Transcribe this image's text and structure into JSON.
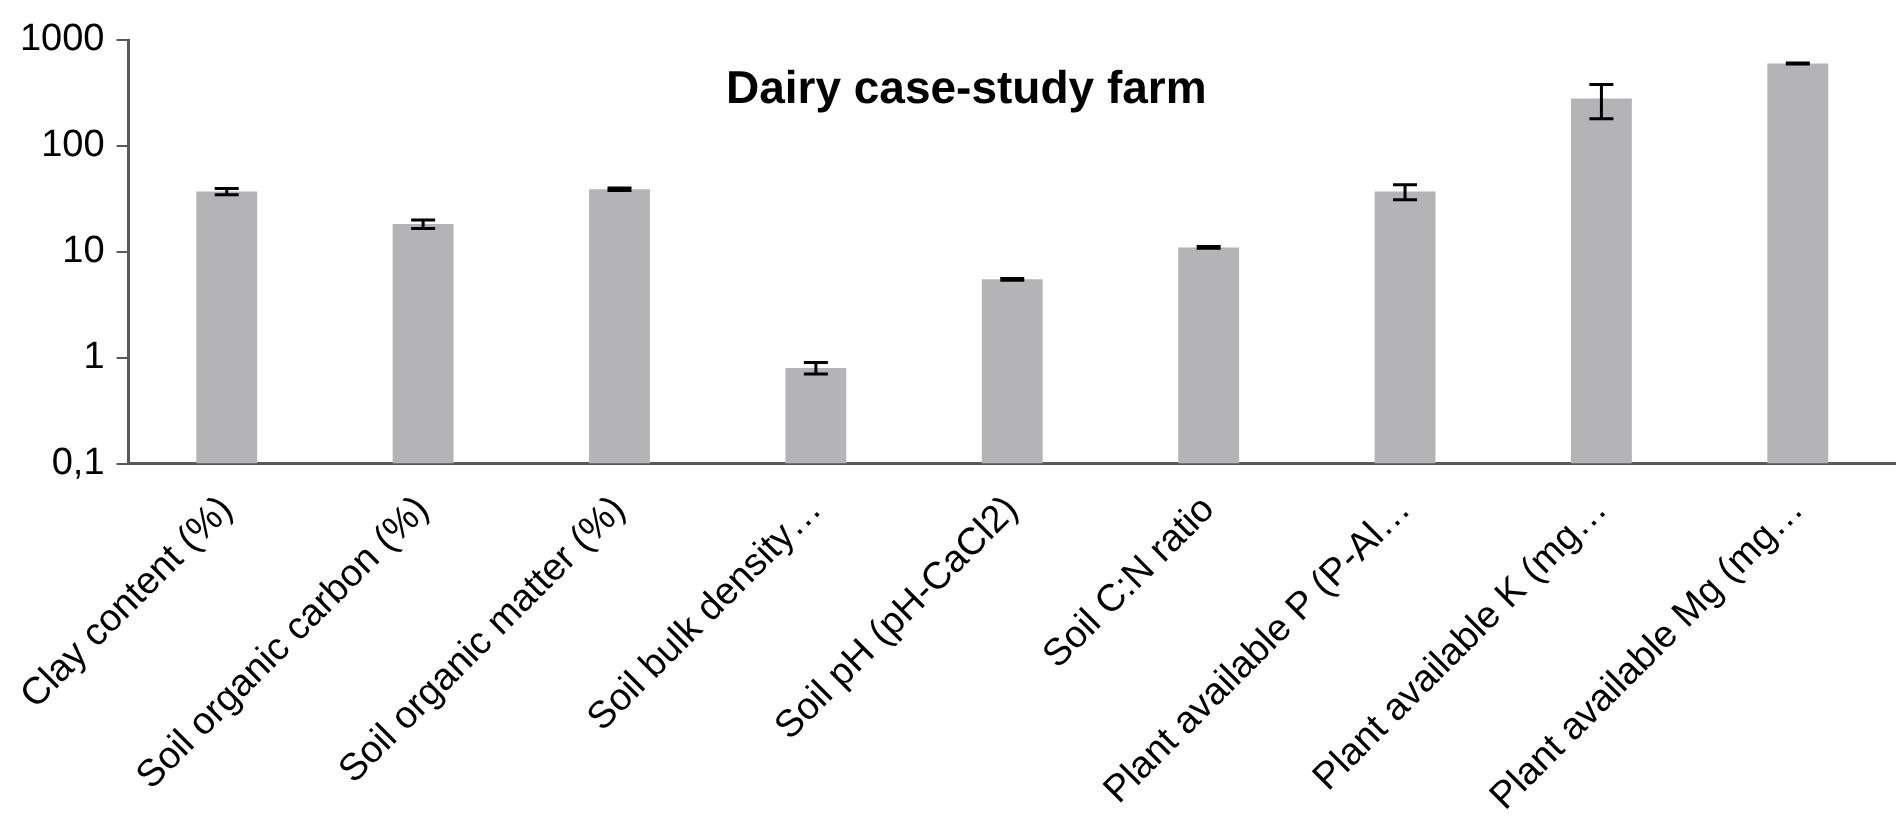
{
  "chart_data": {
    "type": "bar",
    "title": "Dairy case-study farm",
    "categories": [
      "Clay content (%)",
      "Soil organic carbon (%)",
      "Soil organic matter (%)",
      "Soil bulk density…",
      "Soil pH (pH-CaCl2)",
      "Soil C:N ratio",
      "Plant available P (P-Al…",
      "Plant available K (mg…",
      "Plant available Mg (mg…"
    ],
    "values": [
      37,
      18.3,
      39,
      0.8,
      5.5,
      11,
      37,
      280,
      600
    ],
    "errors": [
      2.5,
      1.7,
      1,
      0.1,
      0.1,
      0.2,
      6,
      100,
      8
    ],
    "color": "#b4b4b6",
    "log": true,
    "ylim": [
      0.1,
      1000
    ],
    "yticks": [
      {
        "value": 0.1,
        "label": "0,1"
      },
      1,
      10,
      100,
      1000
    ],
    "grid": false
  }
}
